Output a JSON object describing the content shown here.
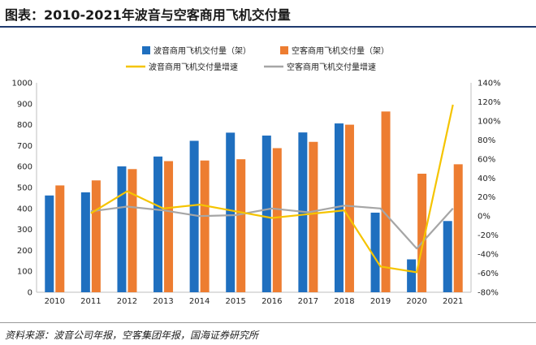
{
  "title": "图表：2010-2021年波音与空客商用飞机交付量",
  "source": "资料来源：波音公司年报，空客集团年报，国海证券研究所",
  "colors": {
    "boeing_bar": "#1f6fbf",
    "airbus_bar": "#ed7d31",
    "boeing_line": "#f5c400",
    "airbus_line": "#a6a6a6"
  },
  "chart_data": {
    "type": "bar",
    "categories": [
      "2010",
      "2011",
      "2012",
      "2013",
      "2014",
      "2015",
      "2016",
      "2017",
      "2018",
      "2019",
      "2020",
      "2021"
    ],
    "series": [
      {
        "name": "波音商用飞机交付量（架）",
        "type": "bar",
        "axis": "left",
        "values": [
          462,
          477,
          601,
          648,
          723,
          762,
          748,
          763,
          806,
          380,
          157,
          340
        ]
      },
      {
        "name": "空客商用飞机交付量（架）",
        "type": "bar",
        "axis": "left",
        "values": [
          510,
          534,
          588,
          626,
          629,
          635,
          688,
          718,
          800,
          863,
          566,
          611
        ]
      },
      {
        "name": "波音商用飞机交付量增速",
        "type": "line",
        "axis": "right",
        "values": [
          null,
          3,
          26,
          8,
          12,
          5,
          -2,
          2,
          6,
          -53,
          -59,
          117
        ]
      },
      {
        "name": "空客商用飞机交付量增速",
        "type": "line",
        "axis": "right",
        "values": [
          null,
          5,
          10,
          6,
          0,
          1,
          8,
          4,
          11,
          8,
          -34,
          8
        ]
      }
    ],
    "y_left": {
      "min": 0,
      "max": 1000,
      "step": 100,
      "ticks": [
        "0",
        "100",
        "200",
        "300",
        "400",
        "500",
        "600",
        "700",
        "800",
        "900",
        "1000"
      ]
    },
    "y_right": {
      "min": -80,
      "max": 140,
      "step": 20,
      "ticks": [
        "-80%",
        "-60%",
        "-40%",
        "-20%",
        "0%",
        "20%",
        "40%",
        "60%",
        "80%",
        "100%",
        "120%",
        "140%"
      ]
    },
    "grid": false,
    "legend_position": "top"
  }
}
